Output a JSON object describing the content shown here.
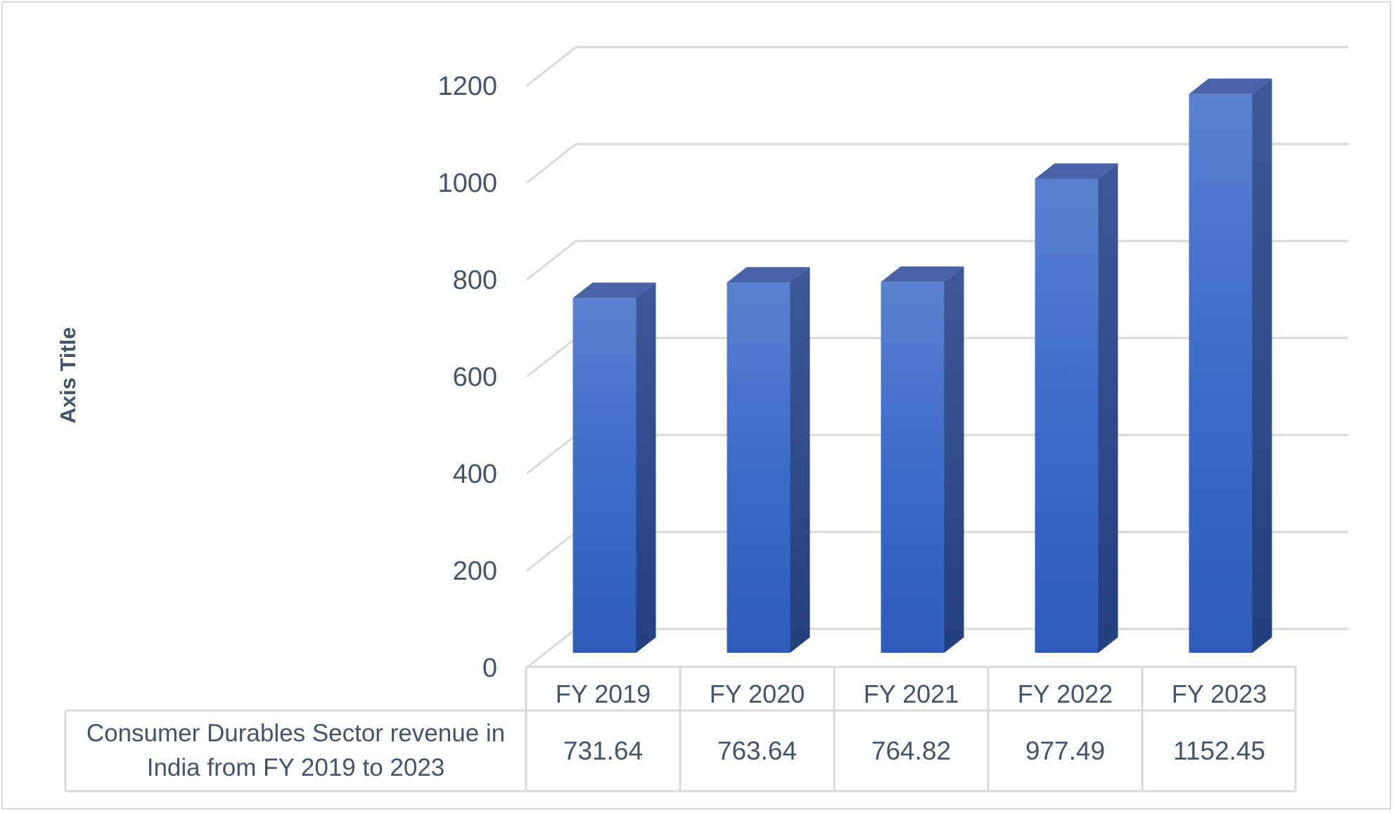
{
  "chart_data": {
    "type": "bar",
    "title": "",
    "xlabel": "",
    "ylabel": "Axis Title",
    "categories": [
      "FY 2019",
      "FY 2020",
      "FY 2021",
      "FY 2022",
      "FY 2023"
    ],
    "series": [
      {
        "name": "Consumer Durables Sector revenue in India from FY 2019 to 2023",
        "name_lines": [
          "Consumer Durables Sector revenue in",
          "India from FY 2019 to 2023"
        ],
        "values": [
          731.64,
          763.64,
          764.82,
          977.49,
          1152.45
        ],
        "value_labels": [
          "731.64",
          "763.64",
          "764.82",
          "977.49",
          "1152.45"
        ],
        "color": "#4472c4"
      }
    ],
    "ylim": [
      0,
      1200
    ],
    "yticks": [
      0,
      200,
      400,
      600,
      800,
      1000,
      1200
    ],
    "grid": true,
    "data_table": true,
    "style": "3d-clustered-column"
  }
}
